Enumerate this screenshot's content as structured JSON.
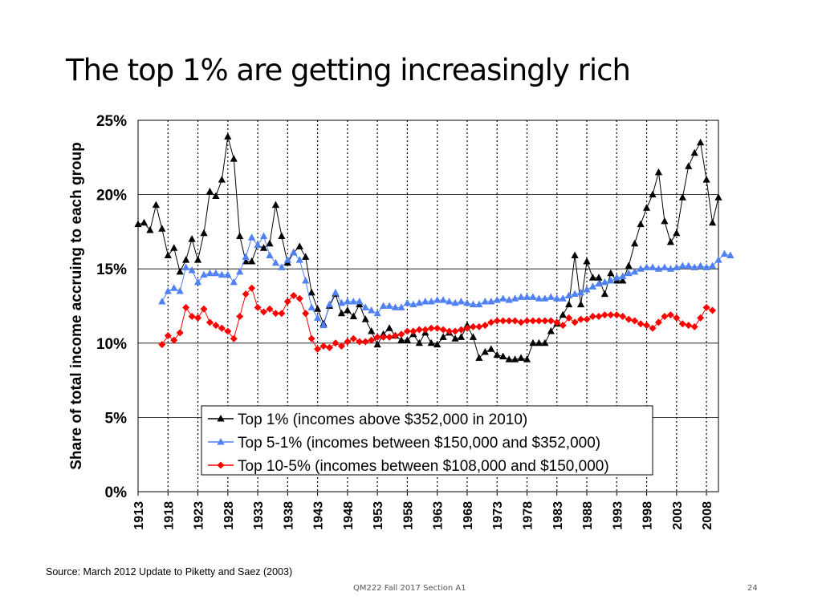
{
  "slide": {
    "title": "The top 1% are getting increasingly rich",
    "source": "Source: March 2012 Update to Piketty and Saez (2003)",
    "footer": "QM222 Fall 2017 Section A1",
    "page_number": "24"
  },
  "chart_data": {
    "type": "line",
    "title": "",
    "ylabel": "Share of total income accruing to each group",
    "xlabel": "",
    "ylim": [
      0,
      25
    ],
    "xlim": [
      1913,
      2010
    ],
    "yticks": [
      0,
      5,
      10,
      15,
      20,
      25
    ],
    "ytick_labels": [
      "0%",
      "5%",
      "10%",
      "15%",
      "20%",
      "25%"
    ],
    "xticks": [
      1913,
      1918,
      1923,
      1928,
      1933,
      1938,
      1943,
      1948,
      1953,
      1958,
      1963,
      1968,
      1973,
      1978,
      1983,
      1988,
      1993,
      1998,
      2003,
      2008
    ],
    "legend_position": "bottom-center",
    "series": [
      {
        "name": "Top 1% (incomes above $352,000 in 2010)",
        "color": "#000000",
        "marker": "triangle",
        "x_start": 1913,
        "values": [
          18.0,
          18.1,
          17.6,
          19.3,
          17.7,
          15.9,
          16.4,
          14.8,
          15.6,
          17.0,
          15.6,
          17.4,
          20.2,
          19.9,
          21.0,
          23.9,
          22.4,
          17.2,
          15.5,
          15.5,
          16.6,
          16.4,
          16.7,
          19.3,
          17.2,
          15.4,
          16.1,
          16.5,
          15.8,
          13.4,
          12.3,
          11.3,
          12.5,
          13.3,
          12.0,
          12.2,
          11.8,
          12.6,
          11.6,
          10.8,
          9.9,
          10.6,
          11.0,
          10.5,
          10.2,
          10.2,
          10.6,
          10.0,
          10.7,
          10.0,
          9.9,
          10.4,
          10.7,
          10.3,
          10.4,
          11.2,
          10.4,
          9.0,
          9.4,
          9.6,
          9.2,
          9.1,
          8.9,
          8.9,
          9.0,
          8.9,
          10.0,
          10.0,
          10.0,
          10.8,
          11.3,
          11.9,
          12.6,
          15.9,
          12.6,
          15.5,
          14.4,
          14.4,
          13.3,
          14.7,
          14.2,
          14.2,
          15.2,
          16.7,
          18.0,
          19.1,
          20.0,
          21.5,
          18.2,
          16.8,
          17.4,
          19.8,
          21.9,
          22.8,
          23.5,
          21.0,
          18.1,
          19.8
        ]
      },
      {
        "name": "Top 5-1% (incomes between $150,000 and $352,000)",
        "color": "#4f81f5",
        "marker": "triangle",
        "x_start": 1917,
        "values": [
          12.8,
          13.5,
          13.7,
          13.5,
          15.1,
          14.9,
          14.1,
          14.6,
          14.7,
          14.7,
          14.6,
          14.6,
          14.1,
          14.8,
          15.8,
          17.1,
          16.6,
          17.2,
          15.9,
          15.4,
          15.1,
          15.6,
          16.1,
          15.6,
          14.2,
          12.4,
          11.7,
          11.2,
          12.6,
          13.4,
          12.7,
          12.8,
          12.8,
          12.8,
          12.4,
          12.2,
          12.0,
          12.5,
          12.5,
          12.4,
          12.4,
          12.7,
          12.6,
          12.7,
          12.8,
          12.8,
          12.9,
          12.9,
          12.8,
          12.7,
          12.8,
          12.7,
          12.6,
          12.6,
          12.8,
          12.8,
          12.9,
          13.0,
          12.9,
          13.0,
          13.1,
          13.1,
          13.1,
          13.0,
          13.0,
          13.1,
          13.0,
          13.0,
          13.2,
          13.3,
          13.4,
          13.6,
          13.8,
          14.0,
          14.1,
          14.2,
          14.4,
          14.5,
          14.7,
          14.8,
          15.0,
          15.1,
          15.1,
          15.0,
          15.1,
          15.0,
          15.1,
          15.2,
          15.2,
          15.1,
          15.2,
          15.1,
          15.2,
          15.6,
          16.0,
          15.9
        ]
      },
      {
        "name": "Top 10-5% (incomes between $108,000 and $150,000)",
        "color": "#ff0000",
        "marker": "diamond",
        "x_start": 1917,
        "values": [
          9.9,
          10.5,
          10.2,
          10.7,
          12.4,
          11.8,
          11.7,
          12.3,
          11.4,
          11.2,
          11.0,
          10.8,
          10.3,
          11.8,
          13.3,
          13.7,
          12.4,
          12.1,
          12.3,
          12.0,
          12.0,
          12.8,
          13.2,
          13.0,
          12.0,
          10.3,
          9.6,
          9.8,
          9.7,
          10.0,
          9.8,
          10.1,
          10.3,
          10.1,
          10.1,
          10.2,
          10.4,
          10.4,
          10.4,
          10.5,
          10.6,
          10.8,
          10.8,
          10.9,
          10.9,
          11.0,
          11.0,
          10.9,
          10.8,
          10.8,
          10.9,
          11.0,
          11.1,
          11.1,
          11.2,
          11.4,
          11.5,
          11.5,
          11.5,
          11.5,
          11.4,
          11.5,
          11.5,
          11.5,
          11.5,
          11.5,
          11.4,
          11.2,
          11.7,
          11.4,
          11.6,
          11.6,
          11.8,
          11.8,
          11.9,
          11.9,
          11.9,
          11.8,
          11.6,
          11.5,
          11.3,
          11.2,
          11.0,
          11.4,
          11.8,
          11.9,
          11.7,
          11.3,
          11.2,
          11.1,
          11.7,
          12.4,
          12.2
        ]
      }
    ]
  }
}
